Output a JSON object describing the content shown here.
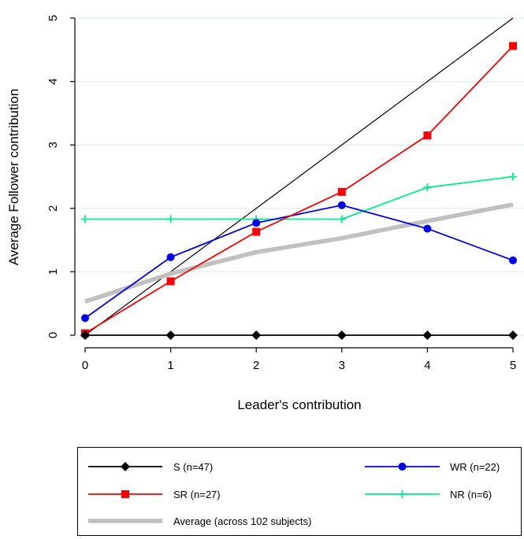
{
  "chart_data": {
    "type": "line",
    "title": "",
    "xlabel": "Leader's contribution",
    "ylabel": "Average Follower contribution",
    "x": [
      0,
      1,
      2,
      3,
      4,
      5
    ],
    "xlim": [
      0,
      5
    ],
    "ylim": [
      0,
      5
    ],
    "xticks": [
      "0",
      "1",
      "2",
      "3",
      "4",
      "5"
    ],
    "yticks": [
      "0",
      "1",
      "2",
      "3",
      "4",
      "5"
    ],
    "grid": "horizontal",
    "legend_position": "bottom",
    "reference_line": {
      "from": [
        0,
        0
      ],
      "to": [
        5,
        5
      ],
      "color": "#000000"
    },
    "series": [
      {
        "name": "S (n=47)",
        "values": [
          0,
          0,
          0,
          0,
          0,
          0
        ],
        "color": "#000000",
        "marker": "diamond"
      },
      {
        "name": "WR (n=22)",
        "values": [
          0.27,
          1.23,
          1.77,
          2.05,
          1.68,
          1.18
        ],
        "color": "#0000ee",
        "marker": "circle"
      },
      {
        "name": "SR (n=27)",
        "values": [
          0.03,
          0.85,
          1.63,
          2.26,
          3.15,
          4.56
        ],
        "color": "#ff0000",
        "marker": "square"
      },
      {
        "name": "NR (n=6)",
        "values": [
          1.83,
          1.83,
          1.83,
          1.83,
          2.33,
          2.5
        ],
        "color": "#00ee88",
        "marker": "plus"
      },
      {
        "name": "Average (across 102 subjects)",
        "values": [
          0.53,
          0.97,
          1.31,
          1.53,
          1.8,
          2.06
        ],
        "color": "#c0c0c0",
        "marker": "none"
      }
    ]
  }
}
